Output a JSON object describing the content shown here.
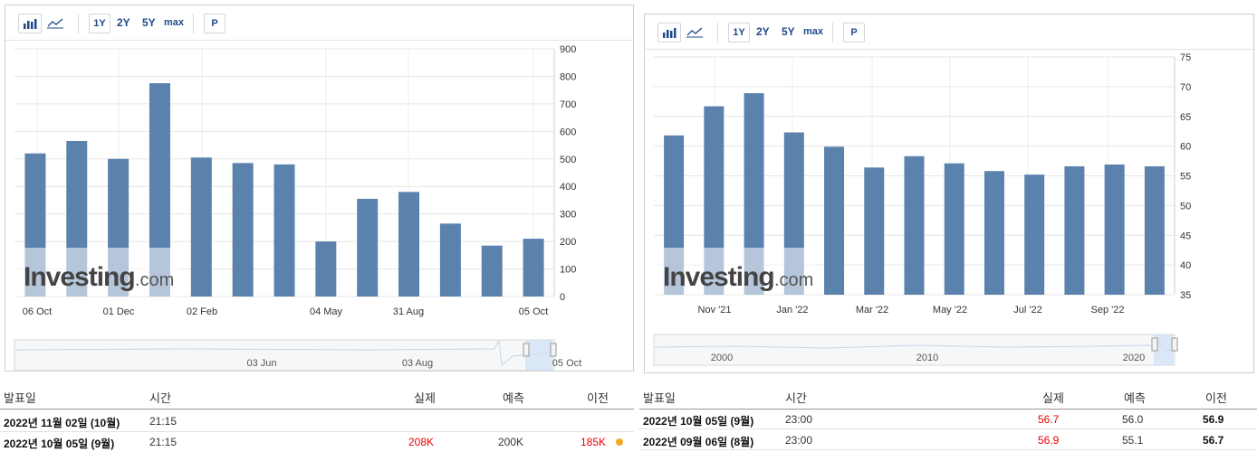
{
  "left": {
    "toolbar": {
      "btn_1y": "1Y",
      "btn_2y": "2Y",
      "btn_5y": "5Y",
      "btn_max": "max",
      "btn_p": "P",
      "bar_icon": "bar-chart-icon",
      "line_icon": "line-chart-icon"
    },
    "watermark": {
      "brand": "Investing",
      "suffix": ".com"
    },
    "chart_data": {
      "type": "bar",
      "values": [
        520,
        565,
        500,
        775,
        505,
        485,
        480,
        200,
        355,
        380,
        265,
        185,
        210
      ],
      "x_tick_labels": [
        "06 Oct",
        "01 Dec",
        "02 Feb",
        "04 May",
        "31 Aug",
        "05 Oct"
      ],
      "y_ticks": [
        0,
        100,
        200,
        300,
        400,
        500,
        600,
        700,
        800,
        900
      ],
      "ylim": [
        0,
        900
      ],
      "y_axis_side": "right",
      "color": "#5b82ad",
      "navigator_labels": [
        "03 Jun",
        "03 Aug",
        "05 Oct"
      ]
    },
    "table": {
      "headers": {
        "date": "발표일",
        "time": "시간",
        "actual": "실제",
        "forecast": "예측",
        "previous": "이전"
      },
      "rows": [
        {
          "date": "2022년 11월 02일 (10월)",
          "time": "21:15",
          "actual": "",
          "forecast": "",
          "previous": ""
        },
        {
          "date": "2022년 10월 05일 (9월)",
          "time": "21:15",
          "actual": "208K",
          "forecast": "200K",
          "previous": "185K"
        }
      ]
    }
  },
  "right": {
    "toolbar": {
      "btn_1y": "1Y",
      "btn_2y": "2Y",
      "btn_5y": "5Y",
      "btn_max": "max",
      "btn_p": "P",
      "bar_icon": "bar-chart-icon",
      "line_icon": "line-chart-icon"
    },
    "watermark": {
      "brand": "Investing",
      "suffix": ".com"
    },
    "chart_data": {
      "type": "bar",
      "values": [
        61.8,
        66.7,
        68.9,
        62.3,
        59.9,
        56.4,
        58.3,
        57.1,
        55.8,
        55.2,
        56.6,
        56.9,
        56.6
      ],
      "x_tick_labels": [
        "Nov '21",
        "Jan '22",
        "Mar '22",
        "May '22",
        "Jul '22",
        "Sep '22"
      ],
      "y_ticks": [
        35,
        40,
        45,
        50,
        55,
        60,
        65,
        70,
        75
      ],
      "ylim": [
        35,
        75
      ],
      "y_axis_side": "right",
      "color": "#5b82ad",
      "navigator_labels": [
        "2000",
        "2010",
        "2020"
      ]
    },
    "table": {
      "headers": {
        "date": "발표일",
        "time": "시간",
        "actual": "실제",
        "forecast": "예측",
        "previous": "이전"
      },
      "rows": [
        {
          "date": "2022년 10월 05일 (9월)",
          "time": "23:00",
          "actual": "56.7",
          "forecast": "56.0",
          "previous": "56.9"
        },
        {
          "date": "2022년 09월 06일 (8월)",
          "time": "23:00",
          "actual": "56.9",
          "forecast": "55.1",
          "previous": "56.7"
        }
      ]
    }
  }
}
